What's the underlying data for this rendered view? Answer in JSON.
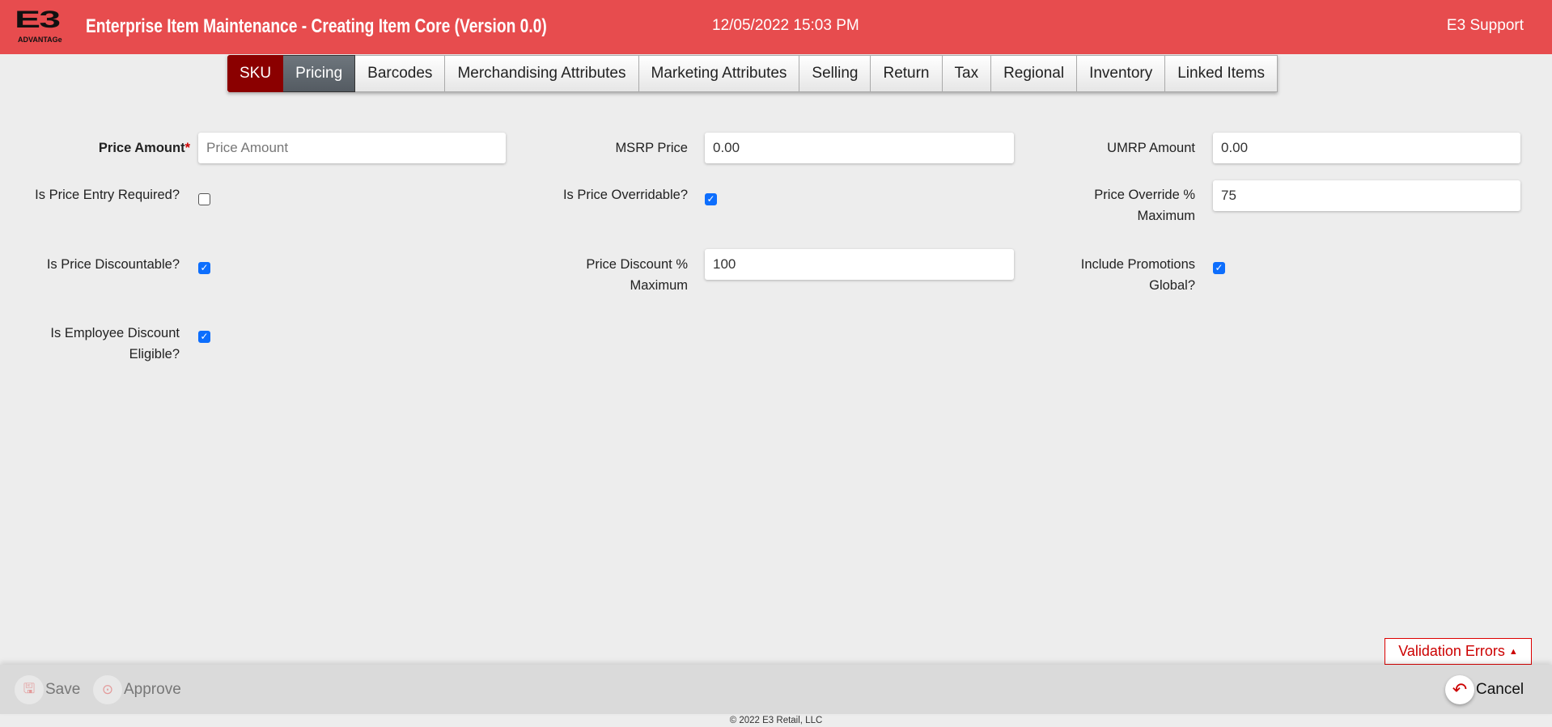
{
  "header": {
    "logo_text": "E3",
    "logo_sub": "ADVANTAGe",
    "title": "Enterprise Item Maintenance - Creating Item Core (Version 0.0)",
    "datetime": "12/05/2022 15:03 PM",
    "user": "E3 Support"
  },
  "tabs": [
    {
      "label": "SKU"
    },
    {
      "label": "Pricing"
    },
    {
      "label": "Barcodes"
    },
    {
      "label": "Merchandising Attributes"
    },
    {
      "label": "Marketing Attributes"
    },
    {
      "label": "Selling"
    },
    {
      "label": "Return"
    },
    {
      "label": "Tax"
    },
    {
      "label": "Regional"
    },
    {
      "label": "Inventory"
    },
    {
      "label": "Linked Items"
    }
  ],
  "active_tab": "Pricing",
  "form": {
    "price_amount": {
      "label": "Price Amount",
      "required_mark": "*",
      "value": "",
      "placeholder": "Price Amount"
    },
    "msrp_price": {
      "label": "MSRP Price",
      "value": "0.00"
    },
    "umrp_amount": {
      "label": "UMRP Amount",
      "value": "0.00"
    },
    "is_price_entry_required": {
      "label": "Is Price Entry Required?",
      "checked": false
    },
    "is_price_overridable": {
      "label": "Is Price Overridable?",
      "checked": true
    },
    "price_override_max": {
      "label_1": "Price Override %",
      "label_2": "Maximum",
      "value": "75"
    },
    "is_price_discountable": {
      "label": "Is Price Discountable?",
      "checked": true
    },
    "price_discount_max": {
      "label_1": "Price Discount %",
      "label_2": "Maximum",
      "value": "100"
    },
    "include_promotions_global": {
      "label_1": "Include Promotions",
      "label_2": "Global?",
      "checked": true
    },
    "is_employee_discount_eligible": {
      "label_1": "Is Employee Discount",
      "label_2": "Eligible?",
      "checked": true
    }
  },
  "validation": {
    "label": "Validation Errors",
    "icon": "caret-up-icon"
  },
  "actions": {
    "save": "Save",
    "approve": "Approve",
    "cancel": "Cancel"
  },
  "footer": {
    "copyright": "© 2022 E3 Retail, LLC"
  }
}
